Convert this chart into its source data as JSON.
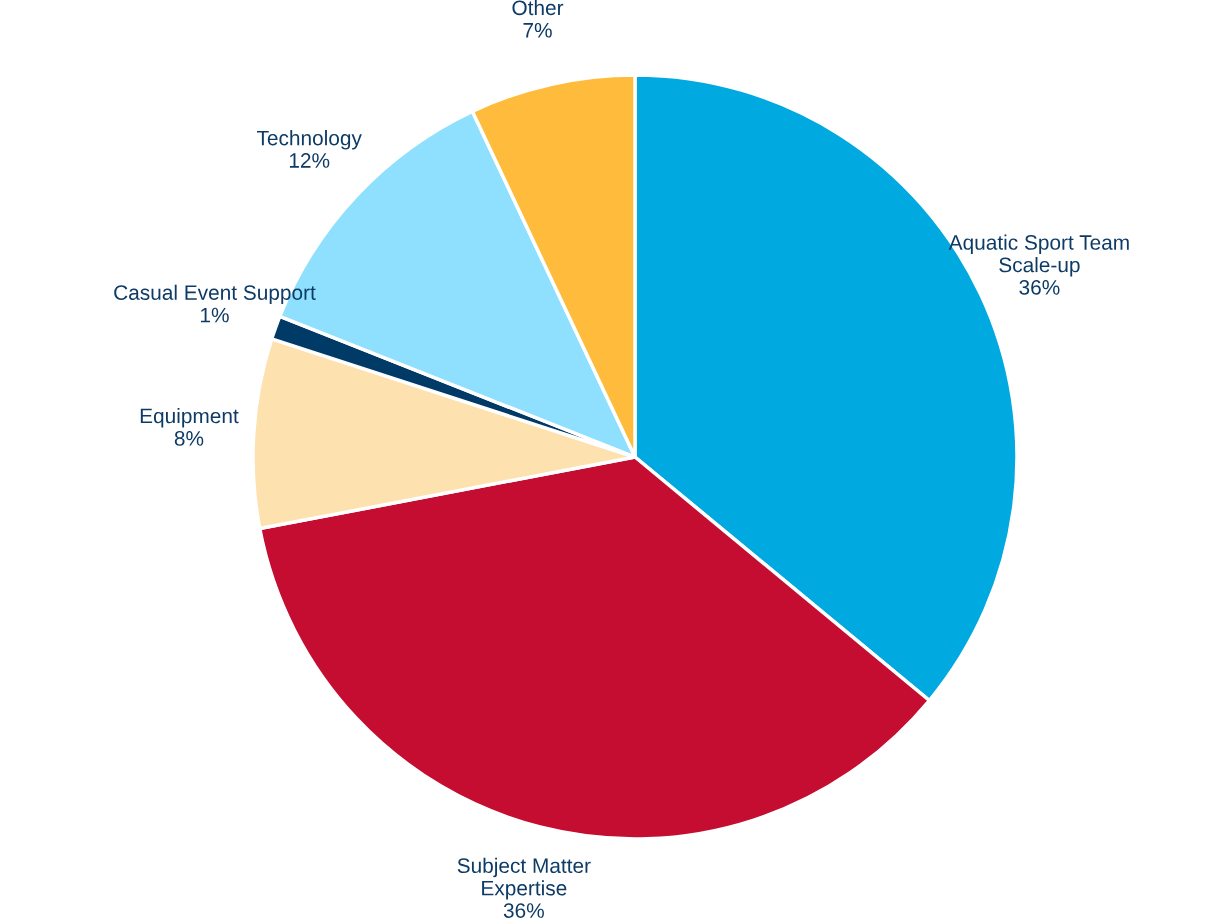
{
  "chart_data": {
    "type": "pie",
    "categories": [
      "Aquatic Sport Team\nScale-up",
      "Subject Matter\nExpertise",
      "Equipment",
      "Casual Event Support",
      "Technology",
      "Other"
    ],
    "values": [
      36,
      36,
      8,
      1,
      12,
      7
    ],
    "value_labels": [
      "36%",
      "36%",
      "8%",
      "1%",
      "12%",
      "7%"
    ],
    "colors": [
      "#00a9e0",
      "#c40d31",
      "#fde2b0",
      "#003a66",
      "#8ee0fe",
      "#ffbb3c"
    ]
  }
}
